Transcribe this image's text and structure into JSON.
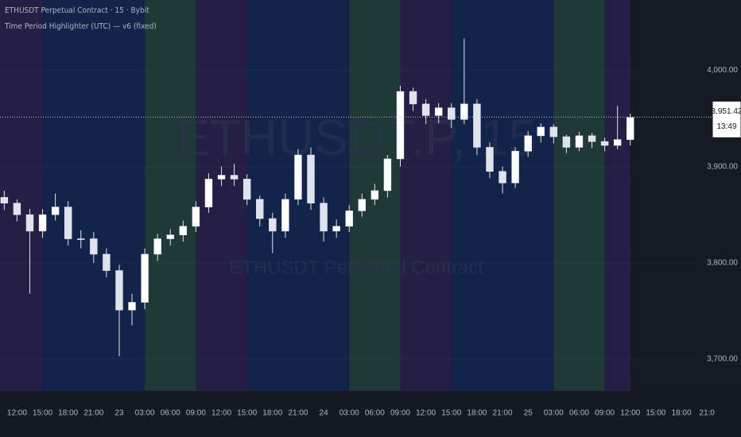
{
  "chart_data": {
    "type": "candlestick",
    "title": "ETHUSDT Perpetual Contract · 15 · Bybit",
    "subtitle": "Time Period Highlighter (UTC) — v6 (fixed)",
    "watermark": "ETHUSDT.P, 15",
    "watermark_subtitle": "ETHUSDT Perpetual Contract",
    "color": "#e0e3eb",
    "xlim": [
      -2,
      85
    ],
    "ylim": [
      3667,
      4073
    ],
    "yticks": [
      {
        "value": 3700,
        "label": "3,700.00"
      },
      {
        "value": 3800,
        "label": "3,800.00"
      },
      {
        "value": 3900,
        "label": "3,900.00"
      },
      {
        "value": 4000,
        "label": "4,000.00"
      }
    ],
    "xticks": [
      {
        "value": 0,
        "label": "12:00"
      },
      {
        "value": 3,
        "label": "15:00"
      },
      {
        "value": 6,
        "label": "18:00"
      },
      {
        "value": 9,
        "label": "21:00"
      },
      {
        "value": 12,
        "label": "23"
      },
      {
        "value": 15,
        "label": "03:00"
      },
      {
        "value": 18,
        "label": "06:00"
      },
      {
        "value": 21,
        "label": "09:00"
      },
      {
        "value": 24,
        "label": "12:00"
      },
      {
        "value": 27,
        "label": "15:00"
      },
      {
        "value": 30,
        "label": "18:00"
      },
      {
        "value": 33,
        "label": "21:00"
      },
      {
        "value": 36,
        "label": "24"
      },
      {
        "value": 39,
        "label": "03:00"
      },
      {
        "value": 42,
        "label": "06:00"
      },
      {
        "value": 45,
        "label": "09:00"
      },
      {
        "value": 48,
        "label": "12:00"
      },
      {
        "value": 51,
        "label": "15:00"
      },
      {
        "value": 54,
        "label": "18:00"
      },
      {
        "value": 57,
        "label": "21:00"
      },
      {
        "value": 60,
        "label": "25"
      },
      {
        "value": 63,
        "label": "03:00"
      },
      {
        "value": 66,
        "label": "06:00"
      },
      {
        "value": 69,
        "label": "09:00"
      },
      {
        "value": 72,
        "label": "12:00"
      },
      {
        "value": 75,
        "label": "15:00"
      },
      {
        "value": 78,
        "label": "18:00"
      },
      {
        "value": 81,
        "label": "21:0"
      }
    ],
    "highlights": [
      {
        "start": -2,
        "end": 3,
        "color": "#261f45"
      },
      {
        "start": 3,
        "end": 15,
        "color": "#13244b"
      },
      {
        "start": 15,
        "end": 21,
        "color": "#1f3937"
      },
      {
        "start": 21,
        "end": 27,
        "color": "#261f45"
      },
      {
        "start": 27,
        "end": 39,
        "color": "#13244b"
      },
      {
        "start": 39,
        "end": 45,
        "color": "#1f3937"
      },
      {
        "start": 45,
        "end": 51,
        "color": "#261f45"
      },
      {
        "start": 51,
        "end": 63,
        "color": "#13244b"
      },
      {
        "start": 63,
        "end": 69,
        "color": "#1f3937"
      },
      {
        "start": 69,
        "end": 72,
        "color": "#261f45"
      }
    ],
    "x": [
      -1.5,
      0,
      1.5,
      3,
      4.5,
      6,
      7.5,
      9,
      10.5,
      12,
      13.5,
      15,
      16.5,
      18,
      19.5,
      21,
      22.5,
      24,
      25.5,
      27,
      28.5,
      30,
      31.5,
      33,
      34.5,
      36,
      37.5,
      39,
      40.5,
      42,
      43.5,
      45,
      46.5,
      48,
      49.5,
      51,
      52.5,
      54,
      55.5,
      57,
      58.5,
      60,
      61.5,
      63,
      64.5,
      66,
      67.5,
      69,
      70.5,
      72
    ],
    "open": [
      3868,
      3862,
      3850,
      3833,
      3850,
      3858,
      3825,
      3825,
      3809,
      3792,
      3751,
      3759,
      3809,
      3825,
      3829,
      3838,
      3858,
      3887,
      3891,
      3887,
      3866,
      3846,
      3833,
      3866,
      3912,
      3862,
      3833,
      3838,
      3854,
      3866,
      3875,
      3908,
      3978,
      3965,
      3953,
      3961,
      3949,
      3965,
      3920,
      3895,
      3883,
      3916,
      3932,
      3941,
      3931,
      3920,
      3932,
      3926,
      3922,
      3928
    ],
    "high": [
      3875,
      3866,
      3856,
      3856,
      3872,
      3864,
      3834,
      3832,
      3815,
      3798,
      3768,
      3815,
      3830,
      3835,
      3844,
      3864,
      3893,
      3900,
      3903,
      3892,
      3870,
      3852,
      3872,
      3918,
      3920,
      3868,
      3845,
      3860,
      3872,
      3882,
      3912,
      3984,
      3982,
      3970,
      3966,
      3966,
      4033,
      3970,
      3925,
      3900,
      3920,
      3937,
      3945,
      3944,
      3933,
      3936,
      3935,
      3930,
      3963,
      3955
    ],
    "low": [
      3855,
      3843,
      3768,
      3826,
      3844,
      3818,
      3815,
      3800,
      3785,
      3703,
      3735,
      3752,
      3802,
      3818,
      3822,
      3832,
      3852,
      3880,
      3880,
      3860,
      3838,
      3810,
      3826,
      3860,
      3855,
      3822,
      3826,
      3832,
      3848,
      3860,
      3868,
      3900,
      3958,
      3944,
      3945,
      3940,
      3944,
      3912,
      3888,
      3872,
      3878,
      3910,
      3925,
      3924,
      3914,
      3916,
      3919,
      3916,
      3918,
      3922
    ],
    "close": [
      3862,
      3850,
      3833,
      3850,
      3858,
      3825,
      3825,
      3809,
      3792,
      3751,
      3759,
      3809,
      3825,
      3829,
      3838,
      3858,
      3887,
      3891,
      3887,
      3866,
      3846,
      3833,
      3866,
      3912,
      3862,
      3833,
      3838,
      3854,
      3866,
      3875,
      3908,
      3978,
      3965,
      3953,
      3961,
      3949,
      3965,
      3920,
      3895,
      3883,
      3916,
      3932,
      3941,
      3931,
      3920,
      3932,
      3926,
      3922,
      3928,
      3951
    ],
    "last_price": {
      "value": 3951.42,
      "label": "3,951.42"
    },
    "countdown": "13:49"
  }
}
